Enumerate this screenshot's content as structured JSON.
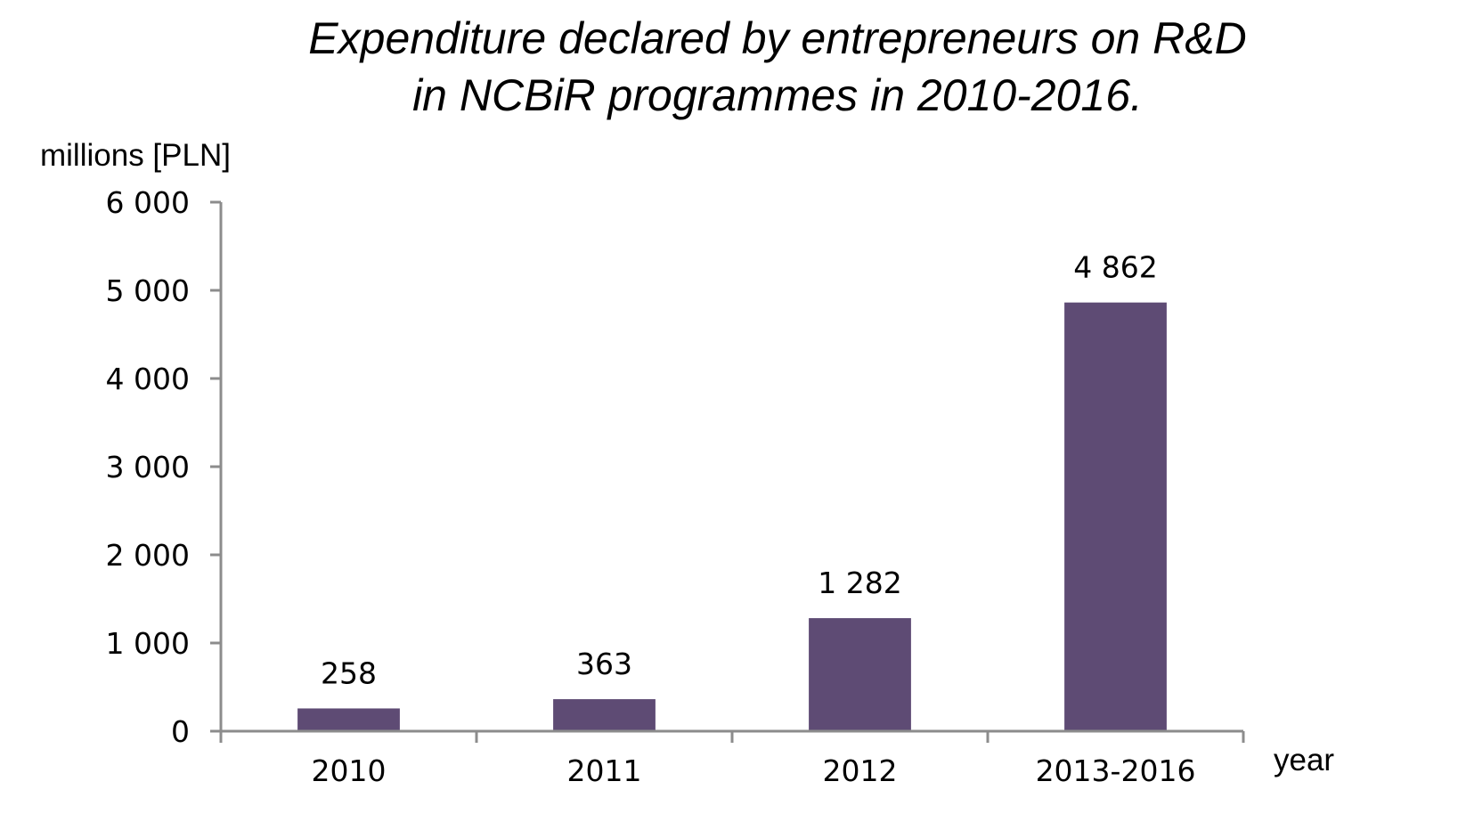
{
  "chart_data": {
    "type": "bar",
    "title_lines": [
      "Expenditure declared by entrepreneurs on R&D",
      "in NCBiR programmes in 2010-2016."
    ],
    "ylabel": "millions [PLN]",
    "xlabel": "year",
    "categories": [
      "2010",
      "2011",
      "2012",
      "2013-2016"
    ],
    "values": [
      258,
      363,
      1282,
      4862
    ],
    "value_labels": [
      "258",
      "363",
      "1 282",
      "4 862"
    ],
    "yticks": [
      0,
      1000,
      2000,
      3000,
      4000,
      5000,
      6000
    ],
    "ytick_labels": [
      "0",
      "1 000",
      "2 000",
      "3 000",
      "4 000",
      "5 000",
      "6 000"
    ],
    "ylim": [
      0,
      6000
    ],
    "grid": false,
    "legend": "none",
    "bar_color": "#5e4b74",
    "axis_color": "#8c8c8c"
  }
}
